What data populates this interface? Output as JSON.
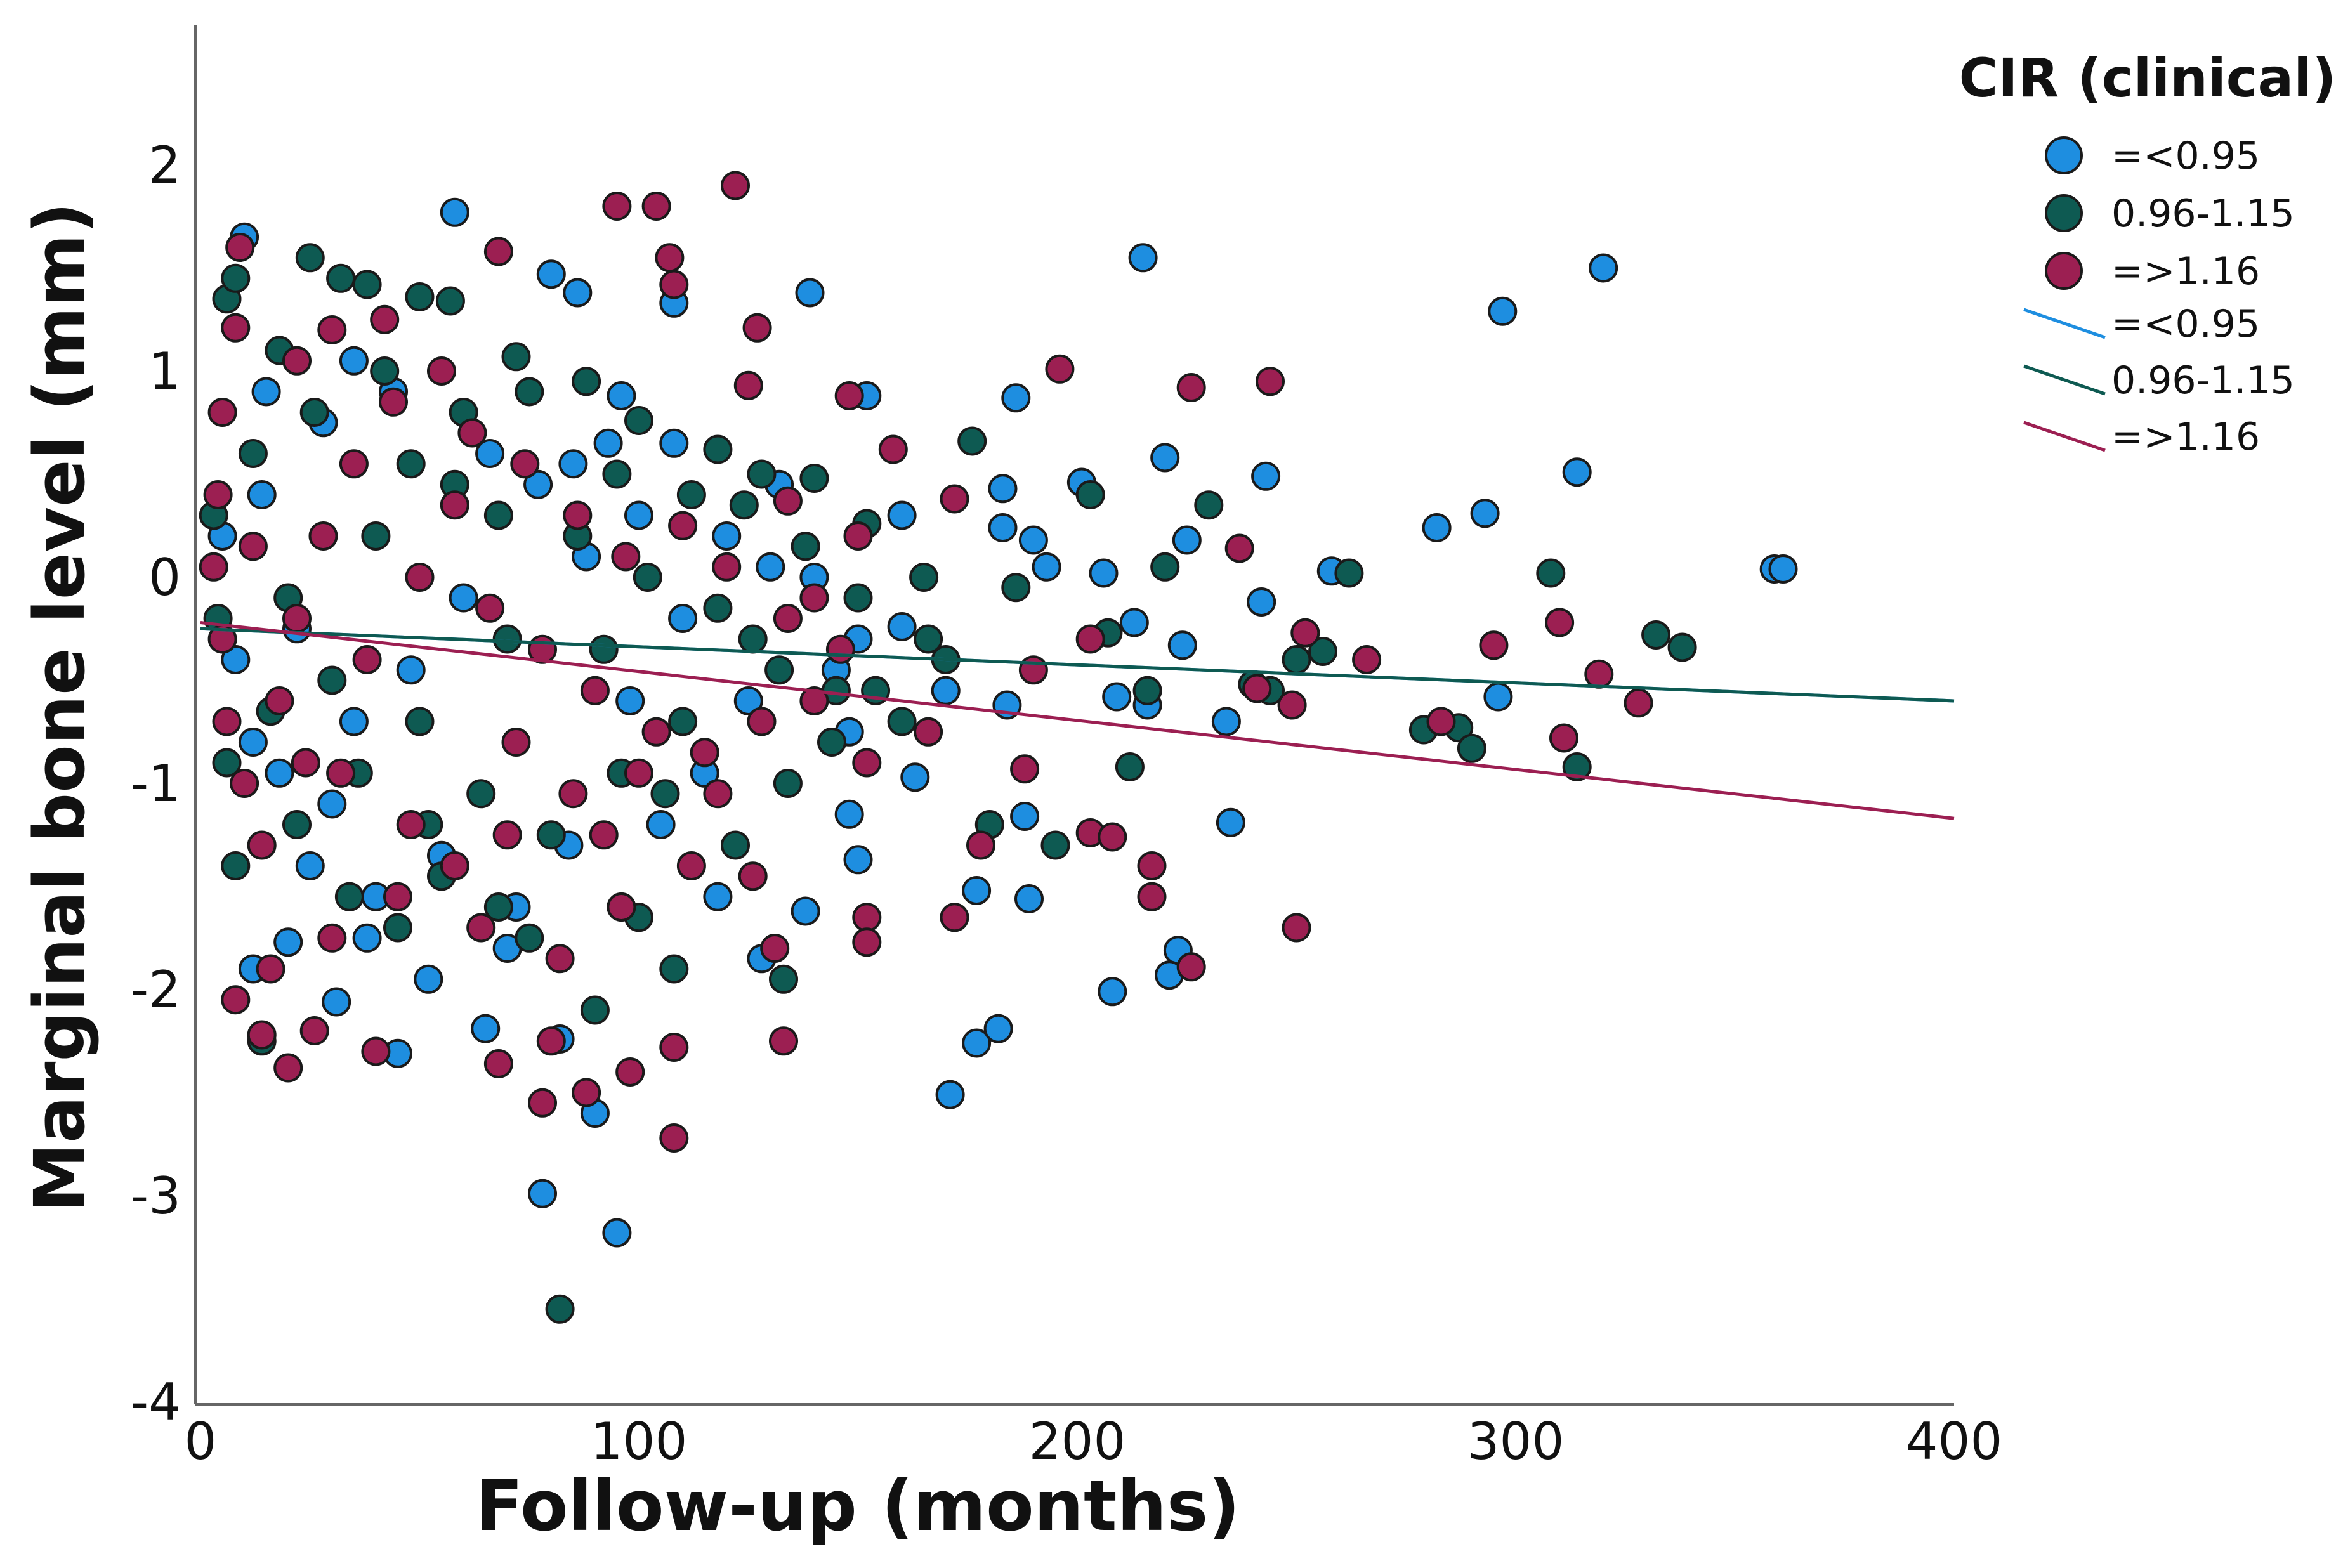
{
  "chart_data": {
    "type": "scatter",
    "title": "",
    "xlabel": "Follow-up (months)",
    "ylabel": "Marginal bone level (mm)",
    "xlim": [
      0,
      400
    ],
    "ylim": [
      -4,
      2.7
    ],
    "xticks": [
      0,
      100,
      200,
      300,
      400
    ],
    "yticks": [
      2,
      1,
      0,
      -1,
      -2,
      -3,
      -4
    ],
    "grid": false,
    "legend": {
      "title": "CIR (clinical)",
      "position": "top-right",
      "marker_entries": [
        "=<0.95",
        "0.96-1.15",
        "=>1.16"
      ],
      "line_entries": [
        "=<0.95",
        "0.96-1.15",
        "=>1.16"
      ]
    },
    "series": [
      {
        "name": "=<0.95",
        "color": "#1e8ee0",
        "fit": {
          "intercept": -0.25,
          "slope": -0.000875
        },
        "points": [
          [
            10,
            1.65
          ],
          [
            58,
            1.77
          ],
          [
            80,
            1.47
          ],
          [
            86,
            1.38
          ],
          [
            108,
            1.33
          ],
          [
            139,
            1.38
          ],
          [
            215,
            1.55
          ],
          [
            297,
            1.29
          ],
          [
            320,
            1.5
          ],
          [
            96,
            0.88
          ],
          [
            152,
            0.88
          ],
          [
            186,
            0.87
          ],
          [
            220,
            0.58
          ],
          [
            243,
            0.49
          ],
          [
            314,
            0.51
          ],
          [
            201,
            0.46
          ],
          [
            183,
            0.43
          ],
          [
            282,
            0.24
          ],
          [
            293,
            0.31
          ],
          [
            183,
            0.24
          ],
          [
            190,
            0.18
          ],
          [
            225,
            0.18
          ],
          [
            258,
            0.03
          ],
          [
            359,
            0.04
          ],
          [
            361,
            0.04
          ],
          [
            206,
            0.02
          ],
          [
            193,
            0.05
          ],
          [
            242,
            -0.12
          ],
          [
            213,
            -0.22
          ],
          [
            224,
            -0.33
          ],
          [
            160,
            -0.24
          ],
          [
            150,
            -0.3
          ],
          [
            296,
            -0.58
          ],
          [
            209,
            -0.58
          ],
          [
            184,
            -0.62
          ],
          [
            216,
            -0.62
          ],
          [
            234,
            -0.7
          ],
          [
            148,
            -0.75
          ],
          [
            163,
            -0.97
          ],
          [
            148,
            -1.15
          ],
          [
            188,
            -1.16
          ],
          [
            235,
            -1.19
          ],
          [
            150,
            -1.37
          ],
          [
            177,
            -1.52
          ],
          [
            189,
            -1.56
          ],
          [
            223,
            -1.81
          ],
          [
            221,
            -1.93
          ],
          [
            208,
            -2.01
          ],
          [
            177,
            -2.26
          ],
          [
            182,
            -2.19
          ],
          [
            171,
            -2.51
          ],
          [
            78,
            -2.99
          ],
          [
            95,
            -3.18
          ],
          [
            90,
            -2.6
          ],
          [
            82,
            -2.24
          ],
          [
            65,
            -2.19
          ],
          [
            45,
            -2.31
          ],
          [
            31,
            -2.06
          ],
          [
            20,
            -1.77
          ],
          [
            12,
            -1.9
          ],
          [
            40,
            -1.55
          ],
          [
            55,
            -1.35
          ],
          [
            30,
            -1.1
          ],
          [
            18,
            -0.95
          ],
          [
            70,
            -1.8
          ],
          [
            35,
            -0.7
          ],
          [
            48,
            -0.45
          ],
          [
            22,
            -0.25
          ],
          [
            60,
            -0.1
          ],
          [
            88,
            0.1
          ],
          [
            100,
            0.3
          ],
          [
            120,
            0.2
          ],
          [
            130,
            0.05
          ],
          [
            110,
            -0.2
          ],
          [
            140,
            0.0
          ],
          [
            125,
            -0.6
          ],
          [
            115,
            -0.95
          ],
          [
            105,
            -1.2
          ],
          [
            14,
            0.4
          ],
          [
            28,
            0.75
          ],
          [
            44,
            0.9
          ],
          [
            66,
            0.6
          ],
          [
            77,
            0.45
          ],
          [
            93,
            0.65
          ],
          [
            108,
            0.65
          ],
          [
            15,
            0.9
          ],
          [
            35,
            1.05
          ],
          [
            5,
            0.2
          ],
          [
            8,
            -0.4
          ],
          [
            12,
            -0.8
          ],
          [
            25,
            -1.4
          ],
          [
            38,
            -1.75
          ],
          [
            52,
            -1.95
          ],
          [
            72,
            -1.6
          ],
          [
            84,
            -1.3
          ],
          [
            96,
            -1.6
          ],
          [
            118,
            -1.55
          ],
          [
            128,
            -1.85
          ],
          [
            138,
            -1.62
          ],
          [
            145,
            -0.45
          ],
          [
            160,
            0.3
          ],
          [
            170,
            -0.55
          ],
          [
            132,
            0.45
          ],
          [
            98,
            -0.6
          ],
          [
            85,
            0.55
          ]
        ]
      },
      {
        "name": "0.96-1.15",
        "color": "#0e5a52",
        "fit": {
          "intercept": -0.25,
          "slope": -0.000875
        },
        "points": [
          [
            25,
            1.55
          ],
          [
            32,
            1.45
          ],
          [
            38,
            1.42
          ],
          [
            50,
            1.36
          ],
          [
            57,
            1.34
          ],
          [
            72,
            1.07
          ],
          [
            88,
            0.95
          ],
          [
            100,
            0.76
          ],
          [
            118,
            0.62
          ],
          [
            128,
            0.5
          ],
          [
            140,
            0.48
          ],
          [
            152,
            0.26
          ],
          [
            165,
            0.0
          ],
          [
            176,
            0.66
          ],
          [
            203,
            0.4
          ],
          [
            230,
            0.35
          ],
          [
            262,
            0.02
          ],
          [
            308,
            0.02
          ],
          [
            250,
            -0.4
          ],
          [
            332,
            -0.28
          ],
          [
            338,
            -0.34
          ],
          [
            279,
            -0.74
          ],
          [
            287,
            -0.73
          ],
          [
            290,
            -0.83
          ],
          [
            314,
            -0.92
          ],
          [
            212,
            -0.92
          ],
          [
            244,
            -0.55
          ],
          [
            216,
            -0.55
          ],
          [
            207,
            -0.27
          ],
          [
            180,
            -1.2
          ],
          [
            195,
            -1.3
          ],
          [
            166,
            -0.3
          ],
          [
            154,
            -0.55
          ],
          [
            144,
            -0.8
          ],
          [
            133,
            -1.95
          ],
          [
            108,
            -1.9
          ],
          [
            100,
            -1.65
          ],
          [
            90,
            -2.1
          ],
          [
            82,
            -3.55
          ],
          [
            75,
            -1.75
          ],
          [
            68,
            -1.6
          ],
          [
            55,
            -1.45
          ],
          [
            45,
            -1.7
          ],
          [
            34,
            -1.55
          ],
          [
            22,
            -1.2
          ],
          [
            14,
            -2.25
          ],
          [
            8,
            -1.4
          ],
          [
            6,
            -0.9
          ],
          [
            4,
            -0.2
          ],
          [
            3,
            0.3
          ],
          [
            6,
            1.35
          ],
          [
            8,
            1.45
          ],
          [
            18,
            1.1
          ],
          [
            42,
            1.0
          ],
          [
            60,
            0.8
          ],
          [
            75,
            0.9
          ],
          [
            95,
            0.5
          ],
          [
            112,
            0.4
          ],
          [
            124,
            0.35
          ],
          [
            138,
            0.15
          ],
          [
            150,
            -0.1
          ],
          [
            126,
            -0.3
          ],
          [
            110,
            -0.7
          ],
          [
            96,
            -0.95
          ],
          [
            80,
            -1.25
          ],
          [
            64,
            -1.05
          ],
          [
            50,
            -0.7
          ],
          [
            30,
            -0.5
          ],
          [
            20,
            -0.1
          ],
          [
            40,
            0.2
          ],
          [
            58,
            0.45
          ],
          [
            86,
            0.2
          ],
          [
            102,
            0.0
          ],
          [
            118,
            -0.15
          ],
          [
            132,
            -0.45
          ],
          [
            145,
            -0.55
          ],
          [
            160,
            -0.7
          ],
          [
            170,
            -0.4
          ],
          [
            186,
            -0.05
          ],
          [
            220,
            0.05
          ],
          [
            240,
            -0.52
          ],
          [
            256,
            -0.36
          ],
          [
            12,
            0.6
          ],
          [
            26,
            0.8
          ],
          [
            48,
            0.55
          ],
          [
            68,
            0.3
          ],
          [
            92,
            -0.35
          ],
          [
            106,
            -1.05
          ],
          [
            122,
            -1.3
          ],
          [
            134,
            -1.0
          ],
          [
            70,
            -0.3
          ],
          [
            52,
            -1.2
          ],
          [
            36,
            -0.95
          ],
          [
            16,
            -0.65
          ]
        ]
      },
      {
        "name": "=>1.16",
        "color": "#9c1f52",
        "fit": {
          "intercept": -0.22,
          "slope": -0.002375
        },
        "points": [
          [
            9,
            1.6
          ],
          [
            95,
            1.8
          ],
          [
            104,
            1.8
          ],
          [
            122,
            1.9
          ],
          [
            68,
            1.58
          ],
          [
            107,
            1.55
          ],
          [
            108,
            1.42
          ],
          [
            127,
            1.21
          ],
          [
            8,
            1.21
          ],
          [
            30,
            1.2
          ],
          [
            42,
            1.25
          ],
          [
            22,
            1.05
          ],
          [
            148,
            0.88
          ],
          [
            125,
            0.93
          ],
          [
            196,
            1.01
          ],
          [
            226,
            0.92
          ],
          [
            244,
            0.95
          ],
          [
            158,
            0.62
          ],
          [
            172,
            0.38
          ],
          [
            134,
            0.37
          ],
          [
            150,
            0.2
          ],
          [
            237,
            0.14
          ],
          [
            310,
            -0.22
          ],
          [
            252,
            -0.27
          ],
          [
            266,
            -0.4
          ],
          [
            295,
            -0.33
          ],
          [
            319,
            -0.47
          ],
          [
            328,
            -0.61
          ],
          [
            311,
            -0.78
          ],
          [
            283,
            -0.7
          ],
          [
            249,
            -0.62
          ],
          [
            241,
            -0.54
          ],
          [
            203,
            -0.3
          ],
          [
            190,
            -0.45
          ],
          [
            188,
            -0.93
          ],
          [
            178,
            -1.3
          ],
          [
            166,
            -0.75
          ],
          [
            152,
            -0.9
          ],
          [
            152,
            -1.65
          ],
          [
            152,
            -1.77
          ],
          [
            172,
            -1.65
          ],
          [
            203,
            -1.24
          ],
          [
            208,
            -1.26
          ],
          [
            217,
            -1.4
          ],
          [
            217,
            -1.55
          ],
          [
            226,
            -1.89
          ],
          [
            250,
            -1.7
          ],
          [
            131,
            -1.8
          ],
          [
            133,
            -2.25
          ],
          [
            108,
            -2.72
          ],
          [
            108,
            -2.28
          ],
          [
            98,
            -2.4
          ],
          [
            88,
            -2.5
          ],
          [
            78,
            -2.55
          ],
          [
            80,
            -2.25
          ],
          [
            68,
            -2.36
          ],
          [
            40,
            -2.3
          ],
          [
            20,
            -2.38
          ],
          [
            14,
            -2.22
          ],
          [
            26,
            -2.2
          ],
          [
            8,
            -2.05
          ],
          [
            16,
            -1.9
          ],
          [
            30,
            -1.75
          ],
          [
            45,
            -1.55
          ],
          [
            58,
            -1.4
          ],
          [
            70,
            -1.25
          ],
          [
            85,
            -1.05
          ],
          [
            100,
            -0.95
          ],
          [
            115,
            -0.85
          ],
          [
            128,
            -0.7
          ],
          [
            140,
            -0.6
          ],
          [
            5,
            0.8
          ],
          [
            4,
            0.4
          ],
          [
            3,
            0.05
          ],
          [
            5,
            -0.3
          ],
          [
            6,
            -0.7
          ],
          [
            10,
            -1.0
          ],
          [
            14,
            -1.3
          ],
          [
            18,
            -0.6
          ],
          [
            22,
            -0.2
          ],
          [
            28,
            0.2
          ],
          [
            35,
            0.55
          ],
          [
            44,
            0.85
          ],
          [
            55,
            1.0
          ],
          [
            62,
            0.7
          ],
          [
            74,
            0.55
          ],
          [
            86,
            0.3
          ],
          [
            97,
            0.1
          ],
          [
            110,
            0.25
          ],
          [
            120,
            0.05
          ],
          [
            134,
            -0.2
          ],
          [
            146,
            -0.35
          ],
          [
            24,
            -0.9
          ],
          [
            38,
            -0.4
          ],
          [
            50,
            0.0
          ],
          [
            66,
            -0.15
          ],
          [
            78,
            -0.35
          ],
          [
            90,
            -0.55
          ],
          [
            104,
            -0.75
          ],
          [
            118,
            -1.05
          ],
          [
            126,
            -1.45
          ],
          [
            96,
            -1.6
          ],
          [
            82,
            -1.85
          ],
          [
            64,
            -1.7
          ],
          [
            48,
            -1.2
          ],
          [
            32,
            -0.95
          ],
          [
            12,
            0.15
          ],
          [
            58,
            0.35
          ],
          [
            72,
            -0.8
          ],
          [
            92,
            -1.25
          ],
          [
            112,
            -1.4
          ],
          [
            140,
            -0.1
          ]
        ]
      }
    ]
  }
}
